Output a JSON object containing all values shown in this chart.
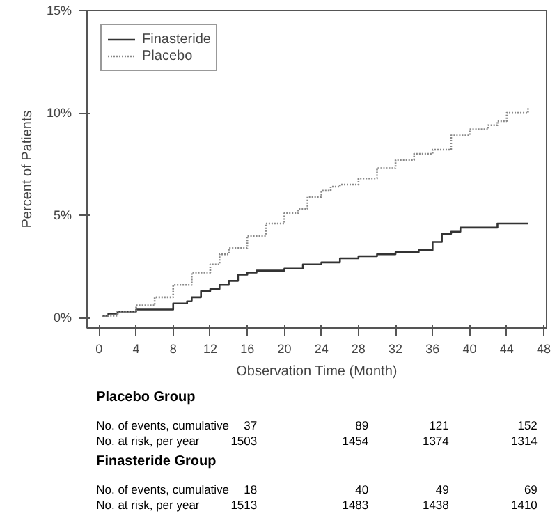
{
  "chart_data": {
    "type": "step",
    "xlabel": "Observation Time (Month)",
    "ylabel": "Percent of Patients",
    "xlim": [
      -1.3,
      48.3
    ],
    "xticks": [
      0,
      4,
      8,
      12,
      16,
      20,
      24,
      28,
      32,
      36,
      40,
      44,
      48
    ],
    "ylim": [
      -0.5,
      15
    ],
    "yticks": [
      {
        "value": 0,
        "label": "0%"
      },
      {
        "value": 5,
        "label": "5%"
      },
      {
        "value": 10,
        "label": "10%"
      },
      {
        "value": 15,
        "label": "15%"
      }
    ],
    "grid": false,
    "legend": "top left",
    "series": [
      {
        "name": "Finasteride",
        "color": "#333333",
        "line_style": "solid",
        "x": [
          0.3,
          1,
          2,
          4,
          7.8,
          8,
          9.5,
          10,
          11,
          12,
          13,
          14,
          15,
          16,
          17,
          20,
          22,
          24,
          26,
          28,
          30,
          32,
          34.5,
          36,
          37,
          38,
          39,
          42,
          43,
          46.3
        ],
        "values": [
          0.1,
          0.2,
          0.3,
          0.4,
          0.4,
          0.7,
          0.8,
          1.0,
          1.3,
          1.4,
          1.6,
          1.8,
          2.1,
          2.2,
          2.3,
          2.4,
          2.6,
          2.7,
          2.9,
          3.0,
          3.1,
          3.2,
          3.3,
          3.7,
          4.1,
          4.2,
          4.4,
          4.4,
          4.6,
          4.6
        ]
      },
      {
        "name": "Placebo",
        "color": "#888888",
        "line_style": "dotted",
        "x": [
          0.3,
          2,
          4,
          6,
          8,
          10,
          12,
          13,
          14,
          16,
          18,
          20,
          21.5,
          22.5,
          24,
          25,
          26,
          28,
          30,
          32,
          34,
          36,
          38,
          40,
          42,
          43,
          44,
          46,
          46.3
        ],
        "values": [
          0.1,
          0.3,
          0.6,
          1.0,
          1.6,
          2.2,
          2.6,
          3.1,
          3.4,
          4.0,
          4.6,
          5.1,
          5.3,
          5.9,
          6.2,
          6.4,
          6.5,
          6.8,
          7.3,
          7.7,
          8.0,
          8.2,
          8.9,
          9.2,
          9.4,
          9.6,
          10.0,
          10.0,
          10.3
        ]
      }
    ],
    "annotations": [
      "Placebo Group",
      "No. of events, cumulative",
      "37",
      "89",
      "121",
      "152",
      "No. at risk, per year",
      "1503",
      "1454",
      "1374",
      "1314",
      "Finasteride Group",
      "No. of events, cumulative",
      "18",
      "40",
      "49",
      "69",
      "No. at risk, per year",
      "1513",
      "1483",
      "1438",
      "1410"
    ]
  }
}
